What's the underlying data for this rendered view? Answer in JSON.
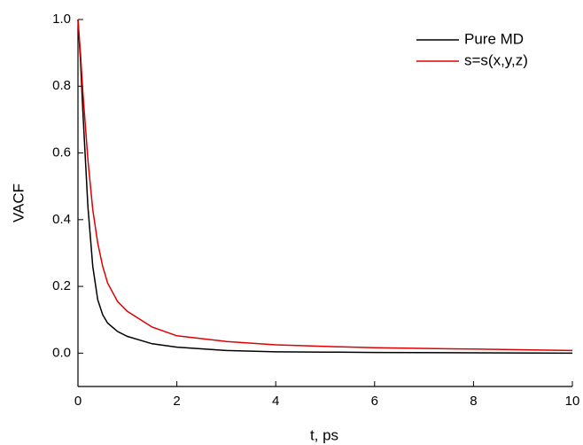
{
  "chart_data": {
    "type": "line",
    "xlabel": "t, ps",
    "ylabel": "VACF",
    "x": [
      0,
      0.05,
      0.1,
      0.2,
      0.3,
      0.4,
      0.5,
      0.6,
      0.8,
      1,
      1.5,
      2,
      3,
      4,
      5,
      6,
      8,
      10
    ],
    "series": [
      {
        "name": "Pure MD",
        "color": "#000000",
        "values": [
          1,
          0.88,
          0.72,
          0.44,
          0.26,
          0.16,
          0.115,
          0.09,
          0.065,
          0.05,
          0.028,
          0.018,
          0.008,
          0.004,
          0.003,
          0.002,
          0.001,
          0.0
        ]
      },
      {
        "name": "s=s(x,y,z)",
        "color": "#e00000",
        "values": [
          1,
          0.9,
          0.78,
          0.58,
          0.43,
          0.33,
          0.26,
          0.21,
          0.155,
          0.125,
          0.078,
          0.052,
          0.035,
          0.025,
          0.02,
          0.016,
          0.012,
          0.008
        ]
      }
    ],
    "xlim": [
      0,
      10
    ],
    "xticks": [
      0,
      2,
      4,
      6,
      8,
      10
    ],
    "ylim": [
      -0.1,
      1.0
    ],
    "yticks": [
      {
        "value": 0,
        "label": "0.0"
      },
      {
        "value": 0.2,
        "label": "0.2"
      },
      {
        "value": 0.4,
        "label": "0.4"
      },
      {
        "value": 0.6,
        "label": "0.6"
      },
      {
        "value": 0.8,
        "label": "0.8"
      },
      {
        "value": 1.0,
        "label": "1.0"
      }
    ],
    "legend": "top-right",
    "grid": false
  }
}
